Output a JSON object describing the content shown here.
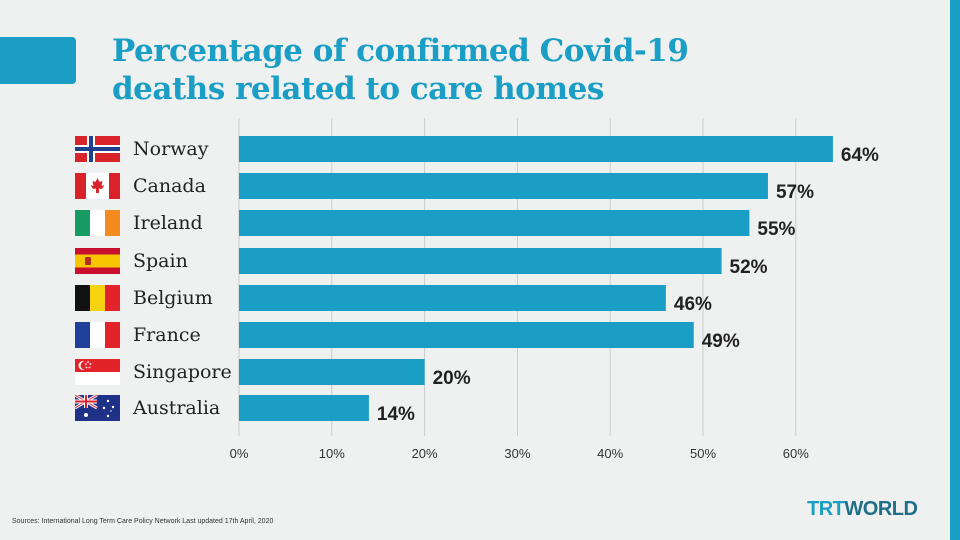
{
  "title": {
    "line1": "Percentage of confirmed Covid-19",
    "line2": "deaths related to care homes"
  },
  "colors": {
    "accent": "#1a9ec6",
    "bar": "#1a9ec6",
    "grid": "#c9cdcc",
    "label": "#222222"
  },
  "chart_data": {
    "type": "bar",
    "orientation": "horizontal",
    "title": "Percentage of confirmed Covid-19 deaths related to care homes",
    "categories": [
      "Norway",
      "Canada",
      "Ireland",
      "Spain",
      "Belgium",
      "France",
      "Singapore",
      "Australia"
    ],
    "flag_icons": [
      "norway-flag-icon",
      "canada-flag-icon",
      "ireland-flag-icon",
      "spain-flag-icon",
      "belgium-flag-icon",
      "france-flag-icon",
      "singapore-flag-icon",
      "australia-flag-icon"
    ],
    "values": [
      64,
      57,
      55,
      52,
      46,
      49,
      20,
      14
    ],
    "value_labels": [
      "64%",
      "57%",
      "55%",
      "52%",
      "46%",
      "49%",
      "20%",
      "14%"
    ],
    "xticks": [
      0,
      10,
      20,
      30,
      40,
      50,
      60
    ],
    "xtick_labels": [
      "0%",
      "10%",
      "20%",
      "30%",
      "40%",
      "50%",
      "60%"
    ],
    "xlim": [
      0,
      70
    ],
    "grid": true
  },
  "footer": {
    "source": "Sources: International Long Term Care Policy Network Last updated 17th April, 2020",
    "logo_part1": "TRT",
    "logo_part2": "WORLD"
  }
}
